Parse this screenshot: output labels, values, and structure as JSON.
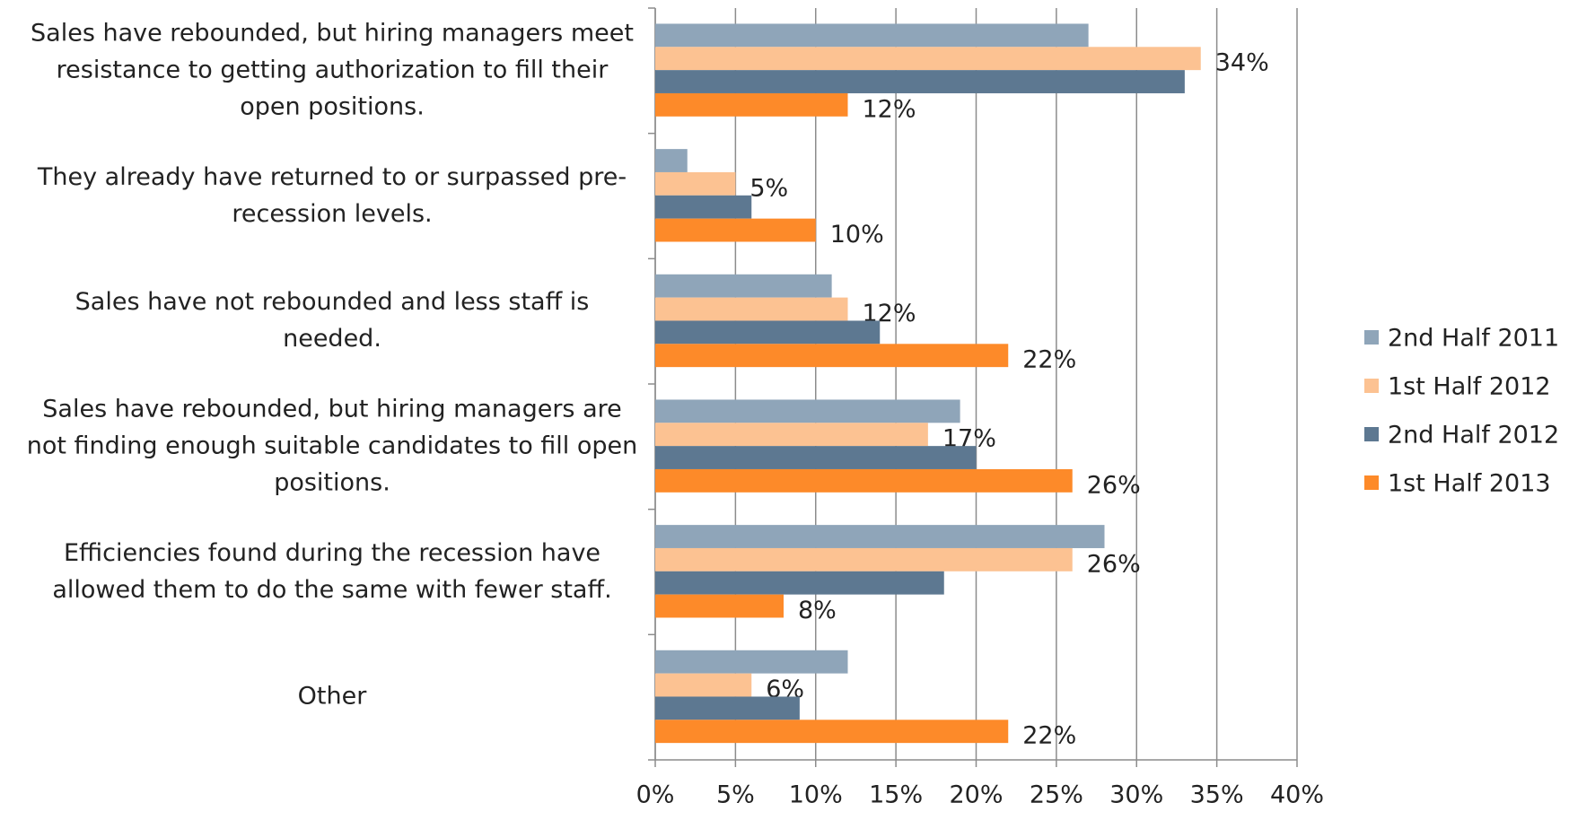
{
  "chart_data": {
    "type": "bar",
    "orientation": "horizontal",
    "categories": [
      "Sales have rebounded, but hiring managers meet resistance to getting authorization to fill their open positions.",
      "They already have returned to or surpassed pre-recession levels.",
      "Sales have not rebounded and less staff is needed.",
      "Sales have rebounded, but hiring managers are not finding enough suitable candidates to fill open positions.",
      "Efficiencies found during the recession have allowed them to do the same with fewer staff.",
      "Other"
    ],
    "series": [
      {
        "name": "2nd Half 2011",
        "color": "#8fa5b9",
        "values": [
          27,
          2,
          11,
          19,
          28,
          12
        ]
      },
      {
        "name": "1st Half 2012",
        "color": "#fcc292",
        "values": [
          34,
          5,
          12,
          17,
          26,
          6
        ],
        "value_labels": [
          "34%",
          "5%",
          "12%",
          "17%",
          "26%",
          "6%"
        ]
      },
      {
        "name": "2nd Half 2012",
        "color": "#5d7891",
        "values": [
          33,
          6,
          14,
          20,
          18,
          9
        ]
      },
      {
        "name": "1st Half 2013",
        "color": "#fd8a29",
        "values": [
          12,
          10,
          22,
          26,
          8,
          22
        ],
        "value_labels": [
          "12%",
          "10%",
          "22%",
          "26%",
          "8%",
          "22%"
        ]
      }
    ],
    "xlim": [
      0,
      40
    ],
    "xticks": [
      {
        "value": 0,
        "label": "0%"
      },
      {
        "value": 5,
        "label": "5%"
      },
      {
        "value": 10,
        "label": "10%"
      },
      {
        "value": 15,
        "label": "15%"
      },
      {
        "value": 20,
        "label": "20%"
      },
      {
        "value": 25,
        "label": "25%"
      },
      {
        "value": 30,
        "label": "30%"
      },
      {
        "value": 35,
        "label": "35%"
      },
      {
        "value": 40,
        "label": "40%"
      }
    ],
    "grid": true,
    "legend": "right"
  }
}
